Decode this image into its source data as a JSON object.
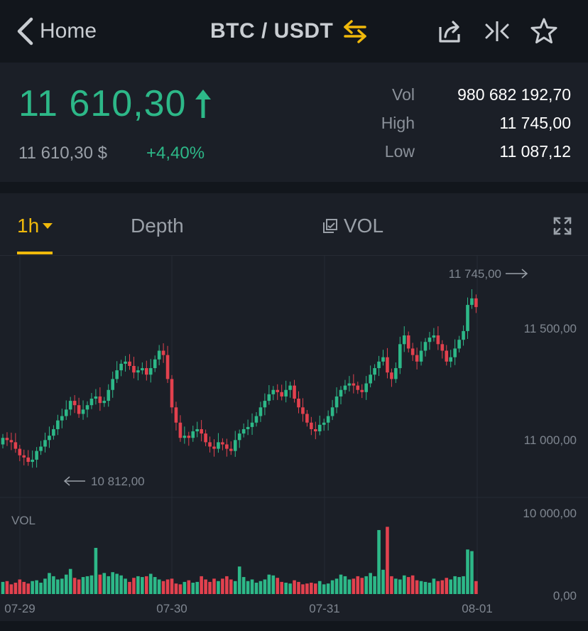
{
  "nav": {
    "back_label": "Home",
    "pair": "BTC / USDT",
    "icons": [
      "chevron-left-icon",
      "swap-icon",
      "share-icon",
      "compare-icon",
      "star-icon"
    ]
  },
  "ticker": {
    "last_price": "11 610,30",
    "fiat_price": "11 610,30 $",
    "change": "+4,40%",
    "stats": [
      {
        "label": "Vol",
        "value": "980 682 192,70"
      },
      {
        "label": "High",
        "value": "11 745,00"
      },
      {
        "label": "Low",
        "value": "11 087,12"
      }
    ]
  },
  "tabs": {
    "interval": "1h",
    "depth": "Depth",
    "indicator": "VOL"
  },
  "colors": {
    "up": "#2db888",
    "down": "#e2414e",
    "accent": "#f0b90b",
    "panel": "#1b1f27",
    "background": "#12161c"
  },
  "chart_data": {
    "type": "candlestick",
    "price_axis_labels": [
      "11 500,00",
      "11 000,00"
    ],
    "volume_axis_labels": [
      "10 000,00",
      "0,00"
    ],
    "volume_label": "VOL",
    "x_labels": [
      "07-29",
      "07-30",
      "07-31",
      "08-01"
    ],
    "high_marker": "11 745,00",
    "low_marker": "10 812,00",
    "price_range": [
      10750,
      11780
    ],
    "volume_range": [
      0,
      10000
    ],
    "close": [
      11010,
      11000,
      10990,
      10960,
      10930,
      10920,
      10900,
      10910,
      10950,
      10970,
      11000,
      11020,
      11050,
      11090,
      11110,
      11140,
      11180,
      11160,
      11120,
      11140,
      11160,
      11190,
      11200,
      11170,
      11180,
      11230,
      11280,
      11320,
      11350,
      11360,
      11340,
      11310,
      11320,
      11330,
      11300,
      11330,
      11370,
      11410,
      11390,
      11280,
      11150,
      11080,
      11010,
      11020,
      11010,
      11040,
      11050,
      11030,
      10990,
      10970,
      10960,
      10990,
      10980,
      10960,
      10950,
      11000,
      11030,
      11050,
      11060,
      11080,
      11110,
      11150,
      11180,
      11210,
      11230,
      11220,
      11200,
      11230,
      11250,
      11190,
      11150,
      11120,
      11080,
      11050,
      11040,
      11070,
      11080,
      11110,
      11150,
      11200,
      11230,
      11250,
      11260,
      11250,
      11230,
      11220,
      11260,
      11300,
      11330,
      11360,
      11380,
      11310,
      11280,
      11330,
      11440,
      11480,
      11420,
      11390,
      11360,
      11410,
      11450,
      11470,
      11480,
      11440,
      11410,
      11360,
      11380,
      11420,
      11460,
      11500,
      11620,
      11650,
      11610
    ],
    "open": [
      10980,
      11010,
      11000,
      10990,
      10960,
      10930,
      10920,
      10900,
      10910,
      10950,
      10970,
      11000,
      11020,
      11050,
      11090,
      11110,
      11140,
      11180,
      11160,
      11120,
      11140,
      11160,
      11190,
      11200,
      11170,
      11180,
      11230,
      11280,
      11320,
      11350,
      11360,
      11340,
      11310,
      11320,
      11330,
      11300,
      11330,
      11370,
      11410,
      11390,
      11280,
      11150,
      11080,
      11010,
      11020,
      11010,
      11040,
      11050,
      11030,
      10990,
      10970,
      10960,
      10990,
      10980,
      10960,
      10950,
      11000,
      11030,
      11050,
      11060,
      11080,
      11110,
      11150,
      11180,
      11210,
      11230,
      11220,
      11200,
      11230,
      11250,
      11190,
      11150,
      11120,
      11080,
      11050,
      11040,
      11070,
      11080,
      11110,
      11150,
      11200,
      11230,
      11250,
      11260,
      11250,
      11230,
      11220,
      11260,
      11300,
      11330,
      11360,
      11380,
      11310,
      11280,
      11330,
      11440,
      11480,
      11420,
      11390,
      11360,
      11410,
      11450,
      11470,
      11480,
      11440,
      11410,
      11360,
      11380,
      11420,
      11460,
      11500,
      11620,
      11650
    ],
    "volume": [
      1500,
      1600,
      1200,
      1400,
      1800,
      1500,
      1300,
      1600,
      1700,
      1400,
      1900,
      2600,
      2200,
      1800,
      1900,
      2400,
      3100,
      2000,
      1800,
      2100,
      2200,
      2300,
      5700,
      2400,
      2600,
      2200,
      2700,
      2500,
      2300,
      1900,
      1500,
      2000,
      2200,
      2100,
      2200,
      2500,
      2100,
      1800,
      1600,
      1800,
      1900,
      1300,
      1200,
      1500,
      1700,
      1400,
      1500,
      2200,
      1800,
      1500,
      1900,
      1600,
      1900,
      2200,
      1800,
      1600,
      3400,
      2100,
      1600,
      1800,
      1400,
      1600,
      1800,
      2400,
      2300,
      2000,
      1500,
      1400,
      1300,
      1700,
      1500,
      1200,
      1300,
      1400,
      1300,
      1600,
      1200,
      1300,
      1700,
      1900,
      2400,
      2200,
      1800,
      1900,
      2200,
      2000,
      2200,
      2600,
      2200,
      7900,
      3000,
      8300,
      2200,
      1900,
      1800,
      2300,
      2100,
      2300,
      1700,
      1600,
      1500,
      1400,
      1900,
      1600,
      1700,
      2000,
      1800,
      2200,
      2100,
      2200,
      5500,
      5300,
      1600
    ]
  }
}
